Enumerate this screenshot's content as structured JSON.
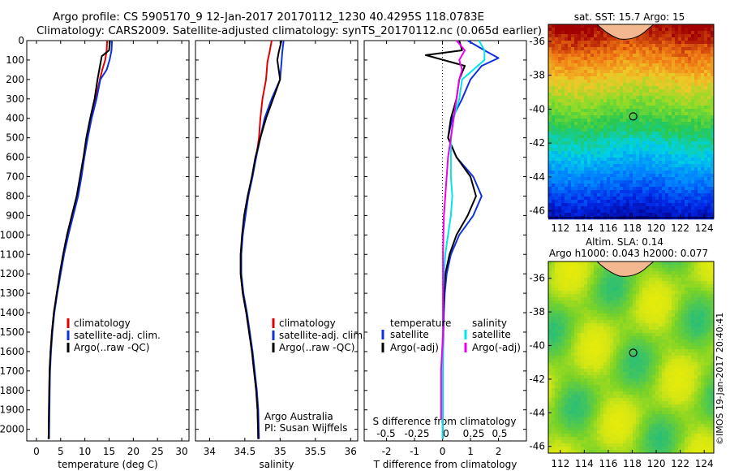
{
  "header": {
    "line1": "Argo profile: CS 5905170_9 12-Jan-2017 20170112_1230 40.4295S 118.0783E",
    "line2": "Climatology: CARS2009. Satellite-adjusted climatology: synTS_20170112.nc (0.065d earlier)"
  },
  "colors": {
    "climatology": "#e00000",
    "satellite": "#1030e0",
    "argo": "#000000",
    "sal_satellite": "#00e5ee",
    "sal_argo": "#ee00ee"
  },
  "depth_ticks": [
    0,
    100,
    200,
    300,
    400,
    500,
    600,
    700,
    800,
    900,
    1000,
    1100,
    1200,
    1300,
    1400,
    1500,
    1600,
    1700,
    1800,
    1900,
    2000
  ],
  "chart_data": [
    {
      "type": "line",
      "xlabel": "temperature (deg C)",
      "xticks": [
        0,
        5,
        10,
        15,
        20,
        25,
        30
      ],
      "xlim": [
        -2,
        31.5
      ],
      "ylim": [
        0,
        2060
      ],
      "legend": {
        "entries": [
          "climatology",
          "satellite-adj. clim.",
          "Argo(..raw -QC)"
        ]
      },
      "series": [
        {
          "name": "climatology",
          "x": [
            14.6,
            14.5,
            14.2,
            13.6,
            13.1,
            12.2,
            11.3,
            10.5,
            9.8,
            9.2,
            8.4,
            7.5,
            6.4,
            5.6,
            4.9,
            4.2,
            3.6,
            3.2,
            2.9,
            2.7,
            2.6,
            2.5
          ],
          "y": [
            0,
            50,
            100,
            150,
            200,
            300,
            400,
            500,
            600,
            700,
            800,
            900,
            1000,
            1100,
            1200,
            1300,
            1400,
            1500,
            1600,
            1700,
            1850,
            2050
          ]
        },
        {
          "name": "satellite-adj. clim.",
          "x": [
            15.6,
            15.5,
            15.1,
            14.5,
            13.2,
            12.4,
            11.4,
            10.6,
            9.9,
            9.3,
            8.6,
            7.6,
            6.6,
            5.7,
            5.0,
            4.3,
            3.7,
            3.3,
            3.0,
            2.8,
            2.7,
            2.6
          ],
          "y": [
            0,
            50,
            100,
            150,
            200,
            300,
            400,
            500,
            600,
            700,
            800,
            900,
            1000,
            1100,
            1200,
            1300,
            1400,
            1500,
            1600,
            1700,
            1850,
            2050
          ]
        },
        {
          "name": "Argo(..raw -QC)",
          "x": [
            15.2,
            15.0,
            13.5,
            13.2,
            12.6,
            12.0,
            11.1,
            10.3,
            9.7,
            9.0,
            8.3,
            7.3,
            6.3,
            5.5,
            4.8,
            4.2,
            3.6,
            3.2,
            2.9,
            2.7,
            2.6,
            2.5
          ],
          "y": [
            0,
            50,
            80,
            120,
            200,
            300,
            400,
            500,
            600,
            700,
            800,
            900,
            1000,
            1100,
            1200,
            1300,
            1400,
            1500,
            1600,
            1700,
            1850,
            2050
          ]
        }
      ]
    },
    {
      "type": "line",
      "xlabel": "salinity",
      "xticks": [
        34,
        34.5,
        35,
        35.5,
        36
      ],
      "xlim": [
        33.8,
        36.1
      ],
      "ylim": [
        0,
        2060
      ],
      "legend": {
        "entries": [
          "climatology",
          "satellite-adj. clim.",
          "Argo(..raw -QC)"
        ]
      },
      "annotation": [
        "Argo Australia",
        "PI: Susan Wijffels"
      ],
      "series": [
        {
          "name": "climatology",
          "x": [
            34.88,
            34.85,
            34.82,
            34.8,
            34.75,
            34.72,
            34.7,
            34.66,
            34.6,
            34.55,
            34.5,
            34.47,
            34.44,
            34.44,
            34.47,
            34.52,
            34.56,
            34.6,
            34.63,
            34.66,
            34.68,
            34.69
          ],
          "y": [
            0,
            60,
            110,
            200,
            300,
            400,
            500,
            600,
            700,
            800,
            900,
            1000,
            1100,
            1200,
            1300,
            1400,
            1500,
            1600,
            1700,
            1800,
            1900,
            2050
          ]
        },
        {
          "name": "satellite-adj. clim.",
          "x": [
            35.05,
            35.03,
            35.02,
            35.0,
            34.88,
            34.78,
            34.72,
            34.66,
            34.61,
            34.55,
            34.51,
            34.47,
            34.45,
            34.45,
            34.48,
            34.53,
            34.57,
            34.61,
            34.64,
            34.67,
            34.69,
            34.7
          ],
          "y": [
            0,
            60,
            110,
            200,
            300,
            400,
            500,
            600,
            700,
            800,
            900,
            1000,
            1100,
            1200,
            1300,
            1400,
            1500,
            1600,
            1700,
            1800,
            1900,
            2050
          ]
        },
        {
          "name": "Argo(..raw -QC)",
          "x": [
            35.02,
            34.98,
            34.96,
            35.0,
            34.9,
            34.8,
            34.72,
            34.65,
            34.6,
            34.54,
            34.49,
            34.46,
            34.44,
            34.44,
            34.47,
            34.52,
            34.56,
            34.6,
            34.63,
            34.66,
            34.68,
            34.69
          ],
          "y": [
            0,
            60,
            100,
            200,
            300,
            400,
            500,
            600,
            700,
            800,
            900,
            1000,
            1100,
            1200,
            1300,
            1400,
            1500,
            1600,
            1700,
            1800,
            1900,
            2050
          ]
        }
      ]
    },
    {
      "type": "line",
      "xlabel": "T difference from climatology",
      "xticks": [
        -2,
        -1,
        0,
        1,
        2
      ],
      "xlim": [
        -2.8,
        3.0
      ],
      "s_label": "S difference from climatology",
      "s_ticks": [
        "-0.5",
        "-0.25",
        "0",
        "0.25",
        "0.5"
      ],
      "ylim": [
        0,
        2060
      ],
      "legend": {
        "temperature_title": "temperature",
        "salinity_title": "salinity",
        "satellite": "satellite",
        "argo": "Argo(-adj)"
      },
      "series": [
        {
          "name": "temperature satellite",
          "x": [
            0.9,
            1.5,
            2.0,
            1.4,
            1.0,
            0.7,
            0.35,
            0.2,
            0.5,
            1.1,
            1.4,
            1.1,
            0.6,
            0.3,
            0.15,
            0.08,
            0.05,
            0.03,
            0.02,
            0.01,
            0.01
          ],
          "y": [
            0,
            50,
            90,
            130,
            200,
            300,
            400,
            500,
            600,
            700,
            800,
            900,
            1000,
            1100,
            1200,
            1300,
            1400,
            1500,
            1600,
            1800,
            2050
          ]
        },
        {
          "name": "temperature Argo(-adj)",
          "x": [
            0.6,
            0.7,
            -0.6,
            0.8,
            0.6,
            0.5,
            0.3,
            0.2,
            0.5,
            1.0,
            1.2,
            0.9,
            0.5,
            0.25,
            0.1,
            0.05,
            0.03,
            0.02,
            0.01,
            0.01,
            0.01
          ],
          "y": [
            0,
            50,
            75,
            130,
            200,
            300,
            400,
            500,
            600,
            700,
            800,
            900,
            1000,
            1100,
            1200,
            1300,
            1400,
            1500,
            1600,
            1800,
            2050
          ]
        },
        {
          "name": "salinity satellite",
          "x": [
            1.3,
            1.5,
            1.5,
            1.1,
            0.7,
            0.6,
            0.4,
            0.3,
            0.3,
            0.3,
            0.35,
            0.3,
            0.2,
            0.1,
            0.05,
            0.02,
            0.02,
            0.01,
            0.01,
            0.01
          ],
          "y": [
            0,
            50,
            100,
            150,
            200,
            300,
            400,
            500,
            600,
            700,
            800,
            900,
            1000,
            1100,
            1200,
            1300,
            1400,
            1500,
            1600,
            2050
          ]
        },
        {
          "name": "salinity Argo(-adj)",
          "x": [
            0.5,
            0.8,
            0.6,
            0.7,
            0.6,
            0.5,
            0.4,
            0.3,
            0.2,
            0.15,
            0.1,
            0.05,
            0.03,
            0.02,
            0.02,
            0.02,
            -0.05,
            -0.05,
            -0.05
          ],
          "y": [
            0,
            50,
            100,
            150,
            200,
            300,
            400,
            500,
            600,
            700,
            800,
            900,
            1000,
            1100,
            1300,
            1500,
            1700,
            1800,
            1950
          ]
        }
      ]
    },
    {
      "type": "heatmap",
      "title": "sat. SST: 15.7 Argo: 15",
      "xticks": [
        "112",
        "114",
        "116",
        "118",
        "120",
        "122",
        "124"
      ],
      "yticks": [
        "-36",
        "-38",
        "-40",
        "-42",
        "-44",
        "-46"
      ],
      "xlim": [
        111,
        124.8
      ],
      "ylim": [
        -46.4,
        -35.0
      ],
      "marker": {
        "lon": 118.08,
        "lat": -40.43
      }
    },
    {
      "type": "heatmap",
      "title_line1": "Altim. SLA: 0.14",
      "title_line2": "Argo h1000: 0.043 h2000: 0.077",
      "xticks": [
        "112",
        "114",
        "116",
        "118",
        "120",
        "122",
        "124"
      ],
      "yticks": [
        "-36",
        "-38",
        "-40",
        "-42",
        "-44",
        "-46"
      ],
      "xlim": [
        111,
        124.8
      ],
      "ylim": [
        -46.4,
        -35.0
      ],
      "marker": {
        "lon": 118.08,
        "lat": -40.43
      }
    }
  ],
  "footer": {
    "credit": "©IMOS 19-Jan-2017 20:40:41"
  }
}
